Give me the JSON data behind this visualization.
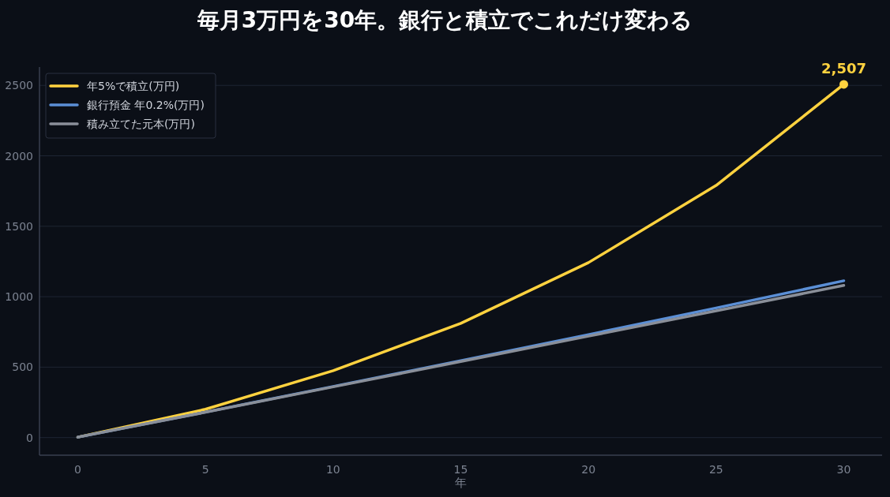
{
  "chart_data": {
    "type": "line",
    "title": "毎月3万円を30年。銀行と積立でこれだけ変わる",
    "xlabel": "年",
    "x": [
      0,
      5,
      10,
      15,
      20,
      25,
      30
    ],
    "series": [
      {
        "name": "年5%で積立(万円)",
        "color": "#ffd23f",
        "values": [
          3,
          201,
          475,
          811,
          1242,
          1790,
          2507
        ]
      },
      {
        "name": "銀行預金 年0.2%(万円)",
        "color": "#5b8fd6",
        "values": [
          3,
          181,
          363,
          546,
          731,
          920,
          1113
        ]
      },
      {
        "name": "積み立てた元本(万円)",
        "color": "#8a8f99",
        "values": [
          3,
          180,
          360,
          540,
          720,
          900,
          1080
        ]
      },
      {
        "type": "scatter",
        "marker": "circle",
        "color": "#ffd23f",
        "x": [
          30
        ],
        "values": [
          2507
        ]
      }
    ],
    "annotations": [
      {
        "text": "2,507",
        "x": 30,
        "y": 2507
      }
    ],
    "xlim": [
      -1.5,
      31.5
    ],
    "xticks": [
      0,
      5,
      10,
      15,
      20,
      25,
      30
    ],
    "ylim": [
      -125,
      2630
    ],
    "yticks": [
      0,
      500,
      1000,
      1500,
      2000,
      2500
    ],
    "grid": "y",
    "legend": "top left",
    "line_style": "solid"
  }
}
